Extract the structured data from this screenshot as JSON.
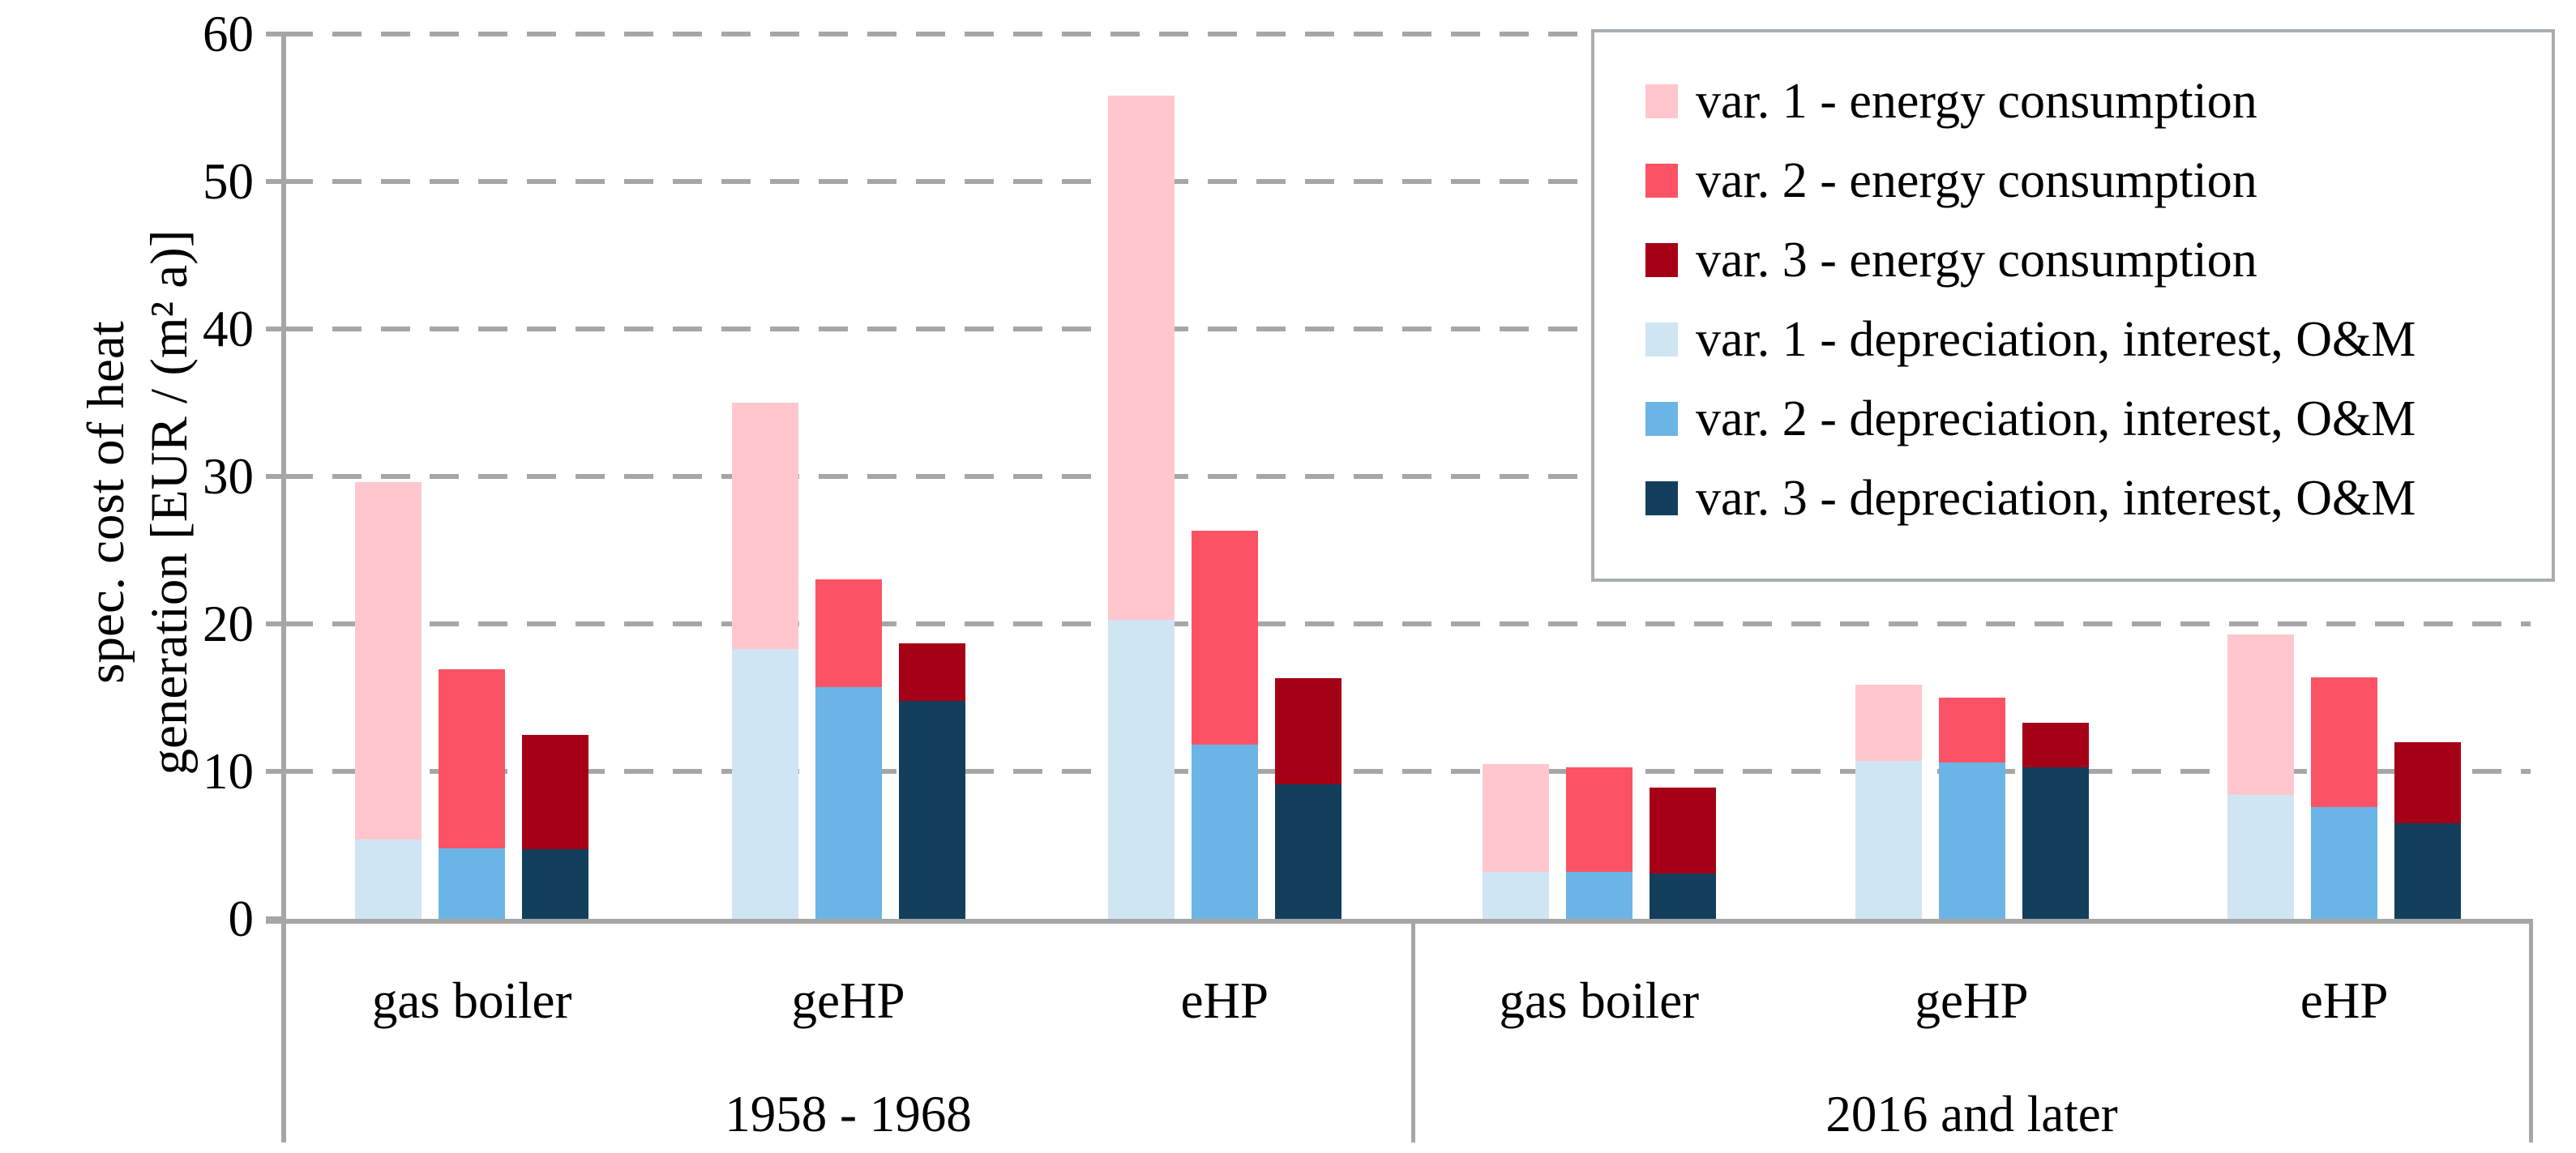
{
  "chart_data": {
    "type": "bar",
    "stacked": true,
    "title": "",
    "ylabel": "spec. cost of heat generation [EUR / (m² a)]",
    "ylabel_lines": [
      "spec. cost of heat",
      "generation [EUR / (m² a)]"
    ],
    "unit": "EUR / (m² a)",
    "ylim": [
      0,
      60
    ],
    "yticks": [
      0,
      10,
      20,
      30,
      40,
      50,
      60
    ],
    "grid": "dashed horizontal gridlines",
    "legend_position": "top-right",
    "groups": [
      {
        "label": "1958 - 1968",
        "categories": [
          {
            "label": "gas boiler",
            "bars": [
              {
                "variant": "var. 1",
                "depreciation_interest_om": 5.4,
                "energy_consumption": 24.2,
                "total": 29.6
              },
              {
                "variant": "var. 2",
                "depreciation_interest_om": 4.8,
                "energy_consumption": 12.1,
                "total": 16.9
              },
              {
                "variant": "var. 3",
                "depreciation_interest_om": 4.7,
                "energy_consumption": 7.8,
                "total": 12.5
              }
            ]
          },
          {
            "label": "geHP",
            "bars": [
              {
                "variant": "var. 1",
                "depreciation_interest_om": 18.3,
                "energy_consumption": 16.7,
                "total": 35.0
              },
              {
                "variant": "var. 2",
                "depreciation_interest_om": 15.7,
                "energy_consumption": 7.3,
                "total": 23.0
              },
              {
                "variant": "var. 3",
                "depreciation_interest_om": 14.8,
                "energy_consumption": 3.9,
                "total": 18.7
              }
            ]
          },
          {
            "label": "eHP",
            "bars": [
              {
                "variant": "var. 1",
                "depreciation_interest_om": 20.3,
                "energy_consumption": 35.5,
                "total": 55.8
              },
              {
                "variant": "var. 2",
                "depreciation_interest_om": 11.8,
                "energy_consumption": 14.5,
                "total": 26.3
              },
              {
                "variant": "var. 3",
                "depreciation_interest_om": 9.1,
                "energy_consumption": 7.2,
                "total": 16.3
              }
            ]
          }
        ]
      },
      {
        "label": "2016 and later",
        "categories": [
          {
            "label": "gas boiler",
            "bars": [
              {
                "variant": "var. 1",
                "depreciation_interest_om": 3.2,
                "energy_consumption": 7.3,
                "total": 10.5
              },
              {
                "variant": "var. 2",
                "depreciation_interest_om": 3.2,
                "energy_consumption": 7.1,
                "total": 10.3
              },
              {
                "variant": "var. 3",
                "depreciation_interest_om": 3.1,
                "energy_consumption": 5.8,
                "total": 8.9
              }
            ]
          },
          {
            "label": "geHP",
            "bars": [
              {
                "variant": "var. 1",
                "depreciation_interest_om": 10.7,
                "energy_consumption": 5.2,
                "total": 15.9
              },
              {
                "variant": "var. 2",
                "depreciation_interest_om": 10.6,
                "energy_consumption": 4.4,
                "total": 15.0
              },
              {
                "variant": "var. 3",
                "depreciation_interest_om": 10.3,
                "energy_consumption": 3.0,
                "total": 13.3
              }
            ]
          },
          {
            "label": "eHP",
            "bars": [
              {
                "variant": "var. 1",
                "depreciation_interest_om": 8.4,
                "energy_consumption": 10.9,
                "total": 19.3
              },
              {
                "variant": "var. 2",
                "depreciation_interest_om": 7.6,
                "energy_consumption": 8.8,
                "total": 16.4
              },
              {
                "variant": "var. 3",
                "depreciation_interest_om": 6.5,
                "energy_consumption": 5.5,
                "total": 12.0
              }
            ]
          }
        ]
      }
    ],
    "legend": [
      {
        "label": "var. 1 - energy consumption",
        "color": "#ffc6ce"
      },
      {
        "label": "var. 2 - energy consumption",
        "color": "#fb5365"
      },
      {
        "label": "var. 3 - energy consumption",
        "color": "#a60016"
      },
      {
        "label": "var. 1 - depreciation, interest, O&M",
        "color": "#cfe5f3"
      },
      {
        "label": "var. 2 - depreciation, interest, O&M",
        "color": "#6ab5e5"
      },
      {
        "label": "var. 3 - depreciation, interest, O&M",
        "color": "#133f5c"
      }
    ],
    "colors": {
      "energy_by_variant": [
        "#ffc6ce",
        "#fb5365",
        "#a60016"
      ],
      "depreciation_by_variant": [
        "#cfe5f3",
        "#6ab5e5",
        "#133f5c"
      ],
      "gridline": "#a6a6a6",
      "axis": "#a6a6a6",
      "legend_border": "#a9aeb0",
      "text": "#000000"
    }
  }
}
